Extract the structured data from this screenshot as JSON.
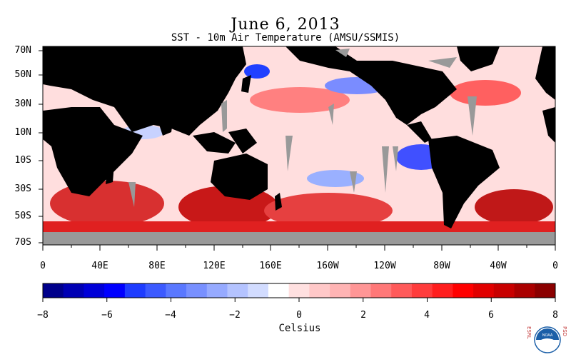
{
  "title": "June 6, 2013",
  "subtitle": "SST - 10m Air Temperature (AMSU/SSMIS)",
  "lat_labels": [
    "70N",
    "50N",
    "30N",
    "10N",
    "10S",
    "30S",
    "50S",
    "70S"
  ],
  "lon_labels": [
    "0",
    "40E",
    "80E",
    "120E",
    "160E",
    "160W",
    "120W",
    "80W",
    "40W",
    "0"
  ],
  "colorbar": {
    "title": "Celsius",
    "tick_labels": [
      "−8",
      "−6",
      "−4",
      "−2",
      "0",
      "2",
      "4",
      "6",
      "8"
    ],
    "range": [
      -8,
      8
    ],
    "colors": [
      "#00008b",
      "#0000b4",
      "#0000d8",
      "#0000ff",
      "#1e3cff",
      "#3c5aff",
      "#5a78ff",
      "#7890ff",
      "#96aaff",
      "#b4c3ff",
      "#d2dcff",
      "#ffffff",
      "#ffe0e0",
      "#ffc8c8",
      "#ffb4b4",
      "#ff9696",
      "#ff7878",
      "#ff5a5a",
      "#ff3c3c",
      "#ff1e1e",
      "#ff0000",
      "#e10000",
      "#c80000",
      "#aa0000",
      "#8b0000"
    ]
  },
  "colors": {
    "land": "#000000",
    "no_data": "#999999"
  },
  "logo": {
    "left_text": "ESRL",
    "right_text": "PSD",
    "badge": "NOAA"
  }
}
